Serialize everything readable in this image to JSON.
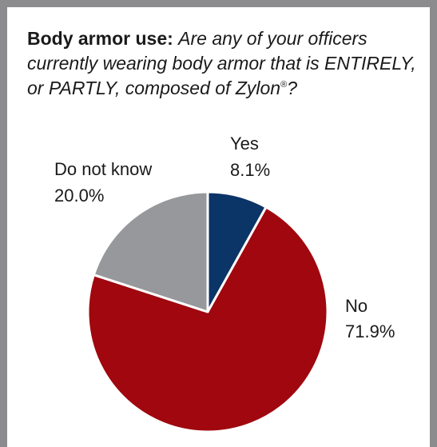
{
  "header": {
    "title_bold": "Body armor use:",
    "question": "Are any of your officers currently wearing body armor that is ENTIRELY, or PARTLY, composed of Zylon",
    "registered_mark": "®",
    "question_end": "?"
  },
  "chart_data": {
    "type": "pie",
    "title": "Body armor use: Are any of your officers currently wearing body armor that is ENTIRELY, or PARTLY, composed of Zylon®?",
    "slices": [
      {
        "label": "Yes",
        "value": 8.1,
        "value_label": "8.1%",
        "color": "#0b3467"
      },
      {
        "label": "No",
        "value": 71.9,
        "value_label": "71.9%",
        "color": "#a0070e"
      },
      {
        "label": "Do not know",
        "value": 20.0,
        "value_label": "20.0%",
        "color": "#96989b"
      }
    ],
    "start": "12 o'clock",
    "direction": "clockwise",
    "legend": "none (direct labels)"
  }
}
